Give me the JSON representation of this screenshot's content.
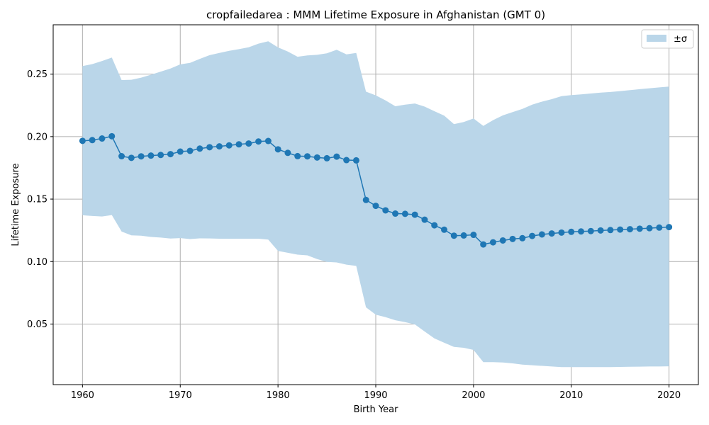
{
  "chart_data": {
    "type": "line",
    "title": "cropfailedarea : MMM Lifetime Exposure in Afghanistan (GMT 0)",
    "xlabel": "Birth Year",
    "ylabel": "Lifetime Exposure",
    "xlim": [
      1957,
      2023
    ],
    "ylim": [
      0.0015,
      0.2895
    ],
    "xticks": [
      1960,
      1970,
      1980,
      1990,
      2000,
      2010,
      2020
    ],
    "xtick_labels": [
      "1960",
      "1970",
      "1980",
      "1990",
      "2000",
      "2010",
      "2020"
    ],
    "yticks": [
      0.05,
      0.1,
      0.15,
      0.2,
      0.25
    ],
    "ytick_labels": [
      "0.05",
      "0.10",
      "0.15",
      "0.20",
      "0.25"
    ],
    "grid": true,
    "legend": {
      "placement": "top-right",
      "entries": [
        "±σ"
      ]
    },
    "colors": {
      "line": "#1f77b4",
      "band": "#bad6e9"
    },
    "x": [
      1960,
      1961,
      1962,
      1963,
      1964,
      1965,
      1966,
      1967,
      1968,
      1969,
      1970,
      1971,
      1972,
      1973,
      1974,
      1975,
      1976,
      1977,
      1978,
      1979,
      1980,
      1981,
      1982,
      1983,
      1984,
      1985,
      1986,
      1987,
      1988,
      1989,
      1990,
      1991,
      1992,
      1993,
      1994,
      1995,
      1996,
      1997,
      1998,
      1999,
      2000,
      2001,
      2002,
      2003,
      2004,
      2005,
      2006,
      2007,
      2008,
      2009,
      2010,
      2011,
      2012,
      2013,
      2014,
      2015,
      2016,
      2017,
      2018,
      2019,
      2020
    ],
    "series": [
      {
        "values": [
          0.1966,
          0.1972,
          0.1985,
          0.2003,
          0.1843,
          0.183,
          0.1842,
          0.1848,
          0.1853,
          0.186,
          0.188,
          0.1886,
          0.1904,
          0.1915,
          0.1922,
          0.193,
          0.1938,
          0.1945,
          0.1961,
          0.1965,
          0.1898,
          0.187,
          0.1844,
          0.1842,
          0.1833,
          0.1827,
          0.184,
          0.1812,
          0.181,
          0.1493,
          0.1446,
          0.141,
          0.1384,
          0.1382,
          0.1375,
          0.1335,
          0.129,
          0.1255,
          0.1207,
          0.1209,
          0.1214,
          0.1137,
          0.1154,
          0.1169,
          0.1181,
          0.1187,
          0.1205,
          0.1217,
          0.1225,
          0.1232,
          0.1238,
          0.1241,
          0.1244,
          0.1249,
          0.1252,
          0.1256,
          0.1259,
          0.1263,
          0.1267,
          0.1272,
          0.1276
        ]
      }
    ],
    "band": {
      "upper": [
        0.2565,
        0.258,
        0.2605,
        0.2633,
        0.2453,
        0.2455,
        0.2472,
        0.2495,
        0.252,
        0.2545,
        0.2578,
        0.259,
        0.2622,
        0.2652,
        0.267,
        0.2687,
        0.27,
        0.2715,
        0.2744,
        0.2763,
        0.2714,
        0.2681,
        0.2639,
        0.265,
        0.2655,
        0.2667,
        0.2695,
        0.2658,
        0.267,
        0.236,
        0.233,
        0.229,
        0.2243,
        0.2256,
        0.2265,
        0.224,
        0.2203,
        0.2168,
        0.21,
        0.2117,
        0.2145,
        0.2086,
        0.2132,
        0.217,
        0.2196,
        0.2222,
        0.2256,
        0.228,
        0.23,
        0.2324,
        0.2332,
        0.2338,
        0.2345,
        0.2352,
        0.2357,
        0.2364,
        0.2372,
        0.238,
        0.2387,
        0.2394,
        0.24
      ],
      "lower": [
        0.1371,
        0.1365,
        0.1361,
        0.1372,
        0.124,
        0.121,
        0.1207,
        0.1197,
        0.1192,
        0.1184,
        0.1188,
        0.118,
        0.1186,
        0.1185,
        0.1183,
        0.1182,
        0.1183,
        0.1183,
        0.1183,
        0.1176,
        0.1085,
        0.107,
        0.1055,
        0.105,
        0.102,
        0.0997,
        0.0993,
        0.0975,
        0.0965,
        0.0634,
        0.0575,
        0.0555,
        0.053,
        0.0515,
        0.0497,
        0.044,
        0.0385,
        0.035,
        0.0317,
        0.031,
        0.0293,
        0.0195,
        0.0195,
        0.0192,
        0.0185,
        0.0175,
        0.017,
        0.0165,
        0.016,
        0.0155,
        0.0155,
        0.0155,
        0.0155,
        0.0155,
        0.0155,
        0.0157,
        0.0158,
        0.0159,
        0.016,
        0.016,
        0.0162
      ]
    }
  }
}
